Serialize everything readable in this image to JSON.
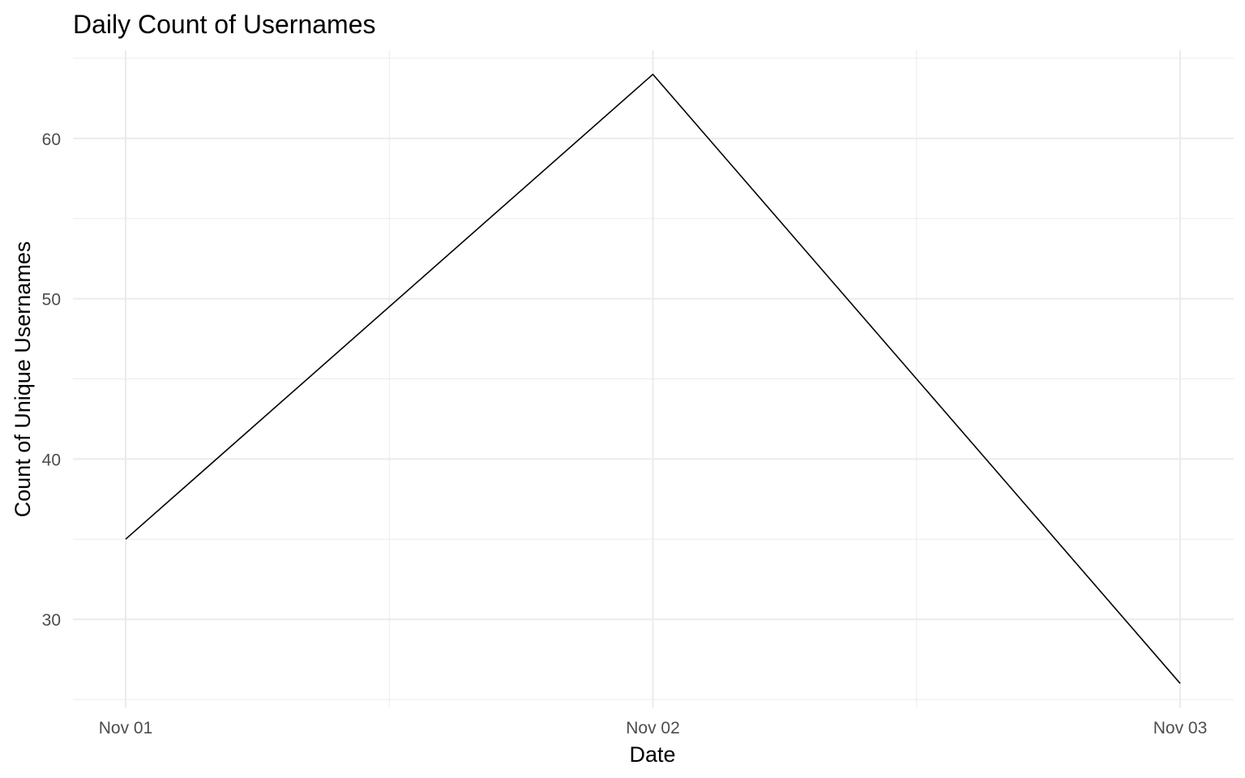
{
  "chart_data": {
    "type": "line",
    "title": "Daily Count of Usernames",
    "xlabel": "Date",
    "ylabel": "Count of Unique Usernames",
    "x": [
      "Nov 01",
      "Nov 02",
      "Nov 03"
    ],
    "series": [
      {
        "values": [
          35,
          64,
          26
        ],
        "color": "#000000"
      }
    ],
    "ylim": [
      24.5,
      65.5
    ],
    "yticks": [
      30,
      40,
      50,
      60
    ],
    "grid": true,
    "legend": "none"
  }
}
